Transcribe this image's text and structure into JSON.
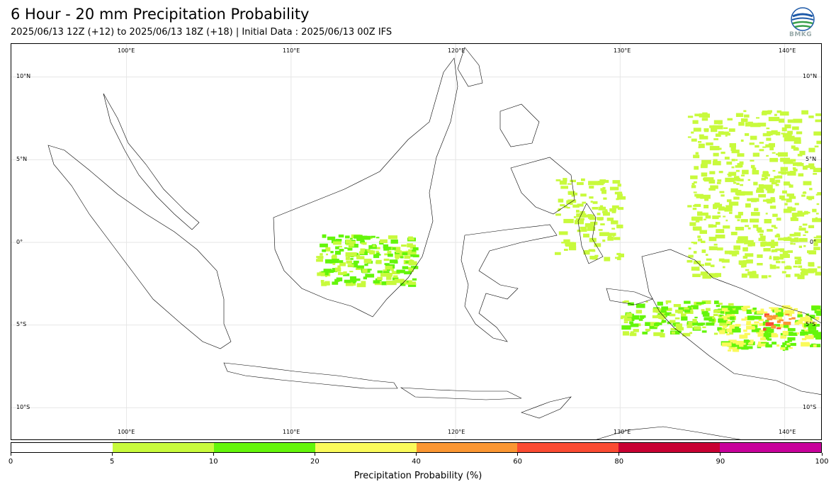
{
  "header": {
    "title": "6 Hour - 20 mm Precipitation Probability",
    "subtitle": "2025/06/13 12Z (+12) to 2025/06/13 18Z (+18) | Initial Data : 2025/06/13 00Z IFS",
    "logo_text": "BMKG"
  },
  "map": {
    "lon_range": [
      93,
      142.3
    ],
    "lat_range": [
      -12,
      12
    ],
    "lon_ticks": [
      "100°E",
      "110°E",
      "120°E",
      "130°E",
      "140°E"
    ],
    "lon_values": [
      100,
      110,
      120,
      130,
      140
    ],
    "lat_ticks": [
      "10°N",
      "5°N",
      "0°",
      "5°S",
      "10°S"
    ],
    "lat_values": [
      10,
      5,
      0,
      -5,
      -10
    ],
    "grid": true,
    "precip_regions": [
      {
        "name": "central-kalimantan",
        "lon": [
          111.5,
          117.5
        ],
        "lat": [
          -2.5,
          0.5
        ],
        "level": 2
      },
      {
        "name": "west-papua-south",
        "lon": [
          130,
          137
        ],
        "lat": [
          -5.5,
          -3.5
        ],
        "level": 2
      },
      {
        "name": "papua-central",
        "lon": [
          136,
          142
        ],
        "lat": [
          -6.5,
          -3.8
        ],
        "level": 3
      },
      {
        "name": "papua-core",
        "lon": [
          138.5,
          140.5
        ],
        "lat": [
          -5.2,
          -4.3
        ],
        "level": 5
      },
      {
        "name": "pacific-north",
        "lon": [
          134,
          142
        ],
        "lat": [
          -2,
          8
        ],
        "level": 1
      },
      {
        "name": "sulawesi-east",
        "lon": [
          126,
          130
        ],
        "lat": [
          -1,
          4
        ],
        "level": 1
      }
    ]
  },
  "colorbar": {
    "title": "Precipitation Probability (%)",
    "bounds": [
      0,
      5,
      10,
      20,
      40,
      60,
      80,
      90,
      100
    ],
    "labels": [
      "0",
      "5",
      "10",
      "20",
      "40",
      "60",
      "80",
      "90",
      "100"
    ],
    "colors": [
      "#ffffff",
      "#c8fa3c",
      "#64f50a",
      "#fafa5a",
      "#fa9632",
      "#fa4b32",
      "#c80032",
      "#c8009b"
    ]
  }
}
